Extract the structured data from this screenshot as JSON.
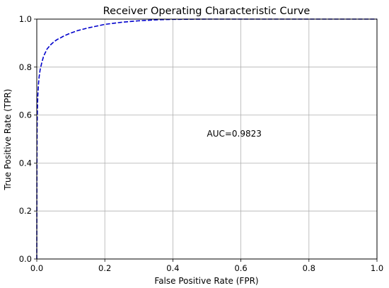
{
  "chart_data": {
    "type": "line",
    "title": "Receiver Operating Characteristic Curve",
    "xlabel": "False Positive Rate (FPR)",
    "ylabel": "True Positive Rate (TPR)",
    "xlim": [
      0,
      1
    ],
    "ylim": [
      0,
      1
    ],
    "xticks": [
      "0.0",
      "0.2",
      "0.4",
      "0.6",
      "0.8",
      "1.0"
    ],
    "yticks": [
      "0.0",
      "0.2",
      "0.4",
      "0.6",
      "0.8",
      "1.0"
    ],
    "grid": true,
    "annotation": {
      "text": "AUC=0.9823",
      "x": 0.5,
      "y": 0.51
    },
    "series": [
      {
        "color": "#0000cc",
        "line_style": "dashed",
        "x": [
          0.0,
          0.0005,
          0.001,
          0.002,
          0.003,
          0.005,
          0.007,
          0.01,
          0.015,
          0.02,
          0.025,
          0.03,
          0.04,
          0.05,
          0.06,
          0.07,
          0.08,
          0.1,
          0.12,
          0.15,
          0.18,
          0.2,
          0.25,
          0.3,
          0.35,
          0.4,
          0.5,
          0.6,
          0.7,
          0.8,
          0.9,
          1.0
        ],
        "y": [
          0.0,
          0.4,
          0.55,
          0.63,
          0.68,
          0.73,
          0.76,
          0.79,
          0.82,
          0.845,
          0.86,
          0.875,
          0.892,
          0.905,
          0.915,
          0.922,
          0.93,
          0.942,
          0.952,
          0.963,
          0.972,
          0.978,
          0.987,
          0.993,
          0.997,
          0.999,
          1.0,
          1.0,
          1.0,
          1.0,
          1.0,
          1.0
        ]
      }
    ]
  }
}
